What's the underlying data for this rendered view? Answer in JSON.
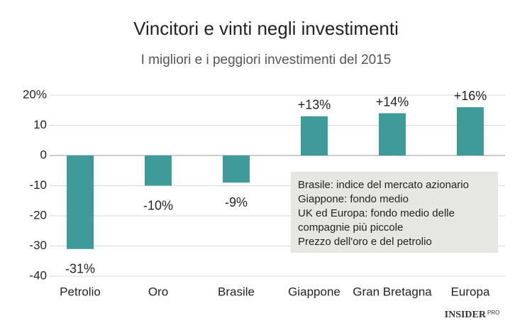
{
  "chart_data": {
    "type": "bar",
    "title": "Vincitori e vinti negli investimenti",
    "subtitle": "I migliori e i peggiori investimenti del 2015",
    "categories": [
      "Petrolio",
      "Oro",
      "Brasile",
      "Giappone",
      "Gran Bretagna",
      "Europa"
    ],
    "values": [
      -31,
      -10,
      -9,
      13,
      14,
      16
    ],
    "value_labels": [
      "-31%",
      "-10%",
      "-9%",
      "+13%",
      "+14%",
      "+16%"
    ],
    "color": "#3f9a9a",
    "ylim": [
      -40,
      20
    ],
    "yticks": [
      {
        "value": 20,
        "label": "20%"
      },
      10,
      0,
      -10,
      -20,
      -30,
      -40
    ],
    "grid": true,
    "notes": [
      "Brasile: indice del mercato azionario",
      "Giappone: fondo medio",
      "UK ed Europa: fondo medio delle",
      "compagnie più piccole",
      "Prezzo dell'oro e del petrolio"
    ],
    "logo": "INSIDER",
    "logo_suffix": "PRO"
  }
}
